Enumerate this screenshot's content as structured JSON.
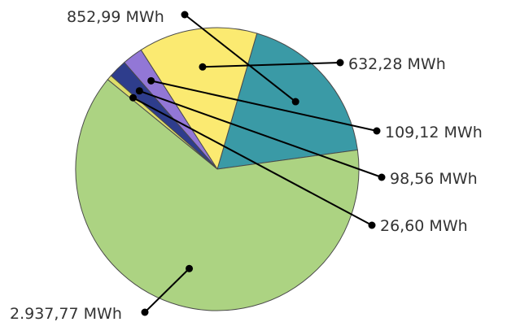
{
  "chart_data": {
    "type": "pie",
    "unit": "MWh",
    "slices": [
      {
        "value": 852.99,
        "label": "852,99 MWh",
        "color": "#3a9aa6"
      },
      {
        "value": 632.28,
        "label": "632,28 MWh",
        "color": "#fbea71"
      },
      {
        "value": 109.12,
        "label": "109,12 MWh",
        "color": "#9277d6"
      },
      {
        "value": 98.56,
        "label": "98,56 MWh",
        "color": "#2e3d8c"
      },
      {
        "value": 26.6,
        "label": "26,60 MWh",
        "color": "#dede6a"
      },
      {
        "value": 2937.77,
        "label": "2.937,77 MWh",
        "color": "#acd382"
      }
    ]
  }
}
